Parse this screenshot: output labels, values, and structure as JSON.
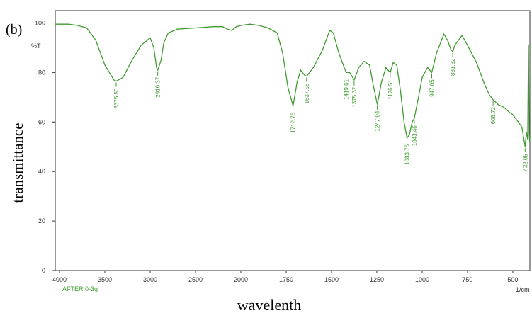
{
  "chart_data": {
    "type": "line",
    "label": "(b)",
    "y_unit": "%T",
    "ylabel": "transmittance",
    "xlabel": "wavelenth",
    "sample": "AFTER 0-3g",
    "x_unit": "1/cm",
    "xlim": [
      4047,
      406
    ],
    "x_break": 2000,
    "ylim": [
      0,
      105
    ],
    "xticks": [
      4000,
      3500,
      3000,
      2500,
      2000,
      1750,
      1500,
      1250,
      1000,
      750,
      500
    ],
    "yticks": [
      0,
      20,
      40,
      60,
      80,
      100
    ],
    "x": [
      4047,
      3900,
      3800,
      3700,
      3600,
      3500,
      3400,
      3375,
      3300,
      3200,
      3100,
      3000,
      2960,
      2930,
      2916,
      2880,
      2850,
      2800,
      2700,
      2500,
      2300,
      2200,
      2150,
      2100,
      2050,
      2000,
      1950,
      1900,
      1850,
      1800,
      1770,
      1740,
      1712,
      1690,
      1670,
      1650,
      1637,
      1600,
      1550,
      1510,
      1490,
      1460,
      1430,
      1419,
      1400,
      1375,
      1350,
      1320,
      1290,
      1270,
      1247,
      1225,
      1200,
      1176,
      1160,
      1140,
      1120,
      1100,
      1083,
      1070,
      1055,
      1043,
      1020,
      1000,
      970,
      947,
      920,
      880,
      860,
      840,
      831,
      820,
      780,
      750,
      700,
      660,
      630,
      609,
      580,
      550,
      520,
      500,
      470,
      450,
      432,
      425,
      418,
      414,
      410,
      407
    ],
    "series": [
      {
        "name": "AFTER 0-3g",
        "color": "#3f9b2f",
        "values": [
          99.5,
          99.5,
          99,
          98,
          93,
          83,
          77,
          76.5,
          78,
          85,
          91,
          94,
          90,
          82,
          81,
          85,
          92,
          96,
          97.5,
          98,
          98.5,
          98.5,
          97.5,
          97,
          98.5,
          99,
          99.5,
          99,
          98,
          96,
          88,
          74,
          66.5,
          76,
          81,
          79,
          78.5,
          82,
          89,
          97,
          96,
          88,
          82,
          80,
          80,
          77,
          82,
          84.5,
          83,
          75,
          67,
          76,
          82,
          80,
          84,
          83,
          73,
          60,
          53.5,
          55,
          60,
          61.5,
          70,
          78,
          82,
          80,
          88,
          95.5,
          93,
          89,
          88.5,
          91,
          95,
          91,
          84,
          76,
          71,
          69,
          67,
          66,
          64,
          63,
          60,
          58,
          50,
          56,
          53,
          91,
          55,
          52
        ]
      }
    ],
    "annotations": [
      {
        "x": 3375.5,
        "label": "3375.50"
      },
      {
        "x": 2916.37,
        "label": "2916.37"
      },
      {
        "x": 1712.76,
        "label": "1712.76"
      },
      {
        "x": 1637.56,
        "label": "1637.56"
      },
      {
        "x": 1419.61,
        "label": "1419.61"
      },
      {
        "x": 1375.32,
        "label": "1375.32"
      },
      {
        "x": 1247.94,
        "label": "1247.94"
      },
      {
        "x": 1176.51,
        "label": "1176.51"
      },
      {
        "x": 1083.76,
        "label": "1083.76"
      },
      {
        "x": 1043.46,
        "label": "1043.46"
      },
      {
        "x": 947.05,
        "label": "947.05"
      },
      {
        "x": 831.32,
        "label": "831.32"
      },
      {
        "x": 608.72,
        "label": "608.72"
      },
      {
        "x": 432.05,
        "label": "432.05"
      }
    ]
  }
}
